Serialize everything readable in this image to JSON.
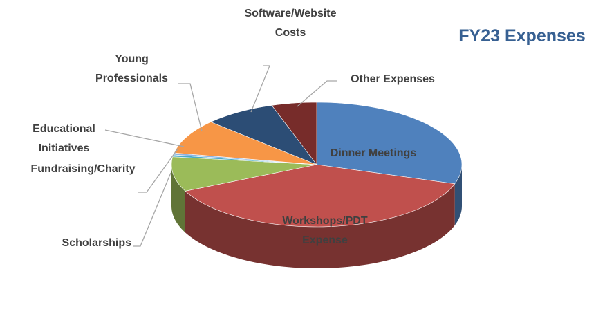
{
  "chart_data": {
    "type": "pie3d",
    "title": "FY23 Expenses",
    "categories": [
      "Dinner Meetings",
      "Workshops/PDT Expense",
      "Scholarships",
      "Fundraising/Charity",
      "Educational Initiatives",
      "Young Professionals",
      "Software/Website Costs",
      "Other Expenses"
    ],
    "values": [
      30,
      38,
      9,
      0.5,
      0.5,
      9,
      8,
      5
    ],
    "colors": [
      "#4f81bd",
      "#c0504d",
      "#9bbb59",
      "#4bacc6",
      "#8eb4e3",
      "#f79646",
      "#2c4d75",
      "#772c2a"
    ]
  }
}
